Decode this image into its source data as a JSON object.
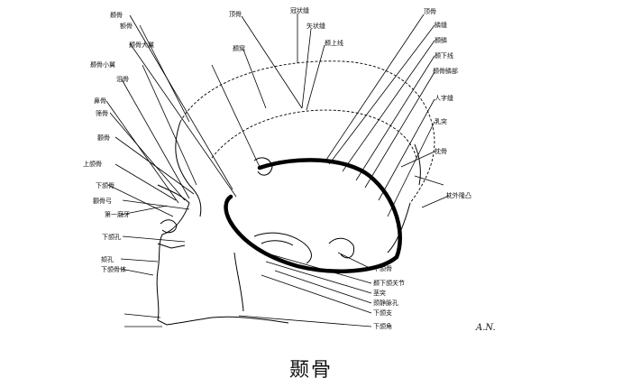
{
  "caption": "颞骨",
  "labels_left": [
    "颞骨",
    "额骨",
    "颞骨大翼",
    "颞骨小翼",
    "泪骨",
    "鼻骨",
    "筛骨",
    "颧骨",
    "上颌骨",
    "下颌骨",
    "颧骨弓",
    "第一磨牙",
    "下颌孔",
    "颏孔",
    "下颌骨体"
  ],
  "labels_top": [
    "顶骨",
    "冠状缝",
    "矢状缝",
    "颞上线",
    "颞窝"
  ],
  "labels_right": [
    "顶骨",
    "鳞缝",
    "颞鳞",
    "颞下线",
    "颞骨鳞部",
    "人字缝",
    "乳突",
    "枕骨",
    "枕外隆凸"
  ],
  "labels_bottom": [
    "下颌骨",
    "颞下颌关节",
    "茎突",
    "颈静脉孔",
    "下颌支",
    "下颌角"
  ],
  "signature": "A.N."
}
